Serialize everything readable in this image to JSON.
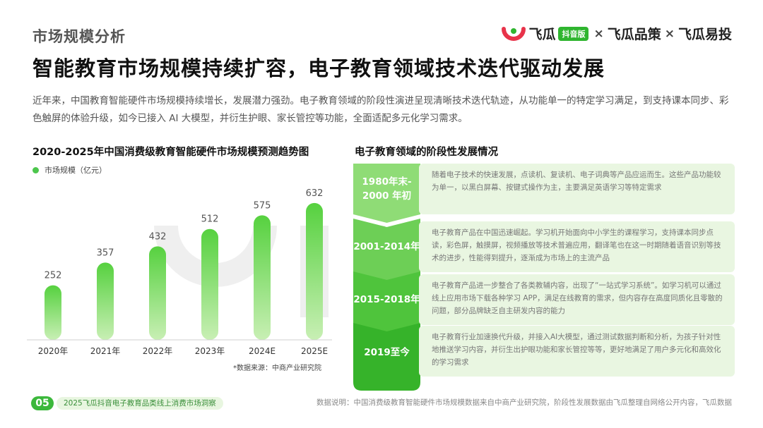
{
  "header": {
    "section_title": "市场规模分析",
    "headline": "智能教育市场规模持续扩容，电子教育领域技术迭代驱动发展",
    "intro": "近年来，中国教育智能硬件市场规模持续增长，发展潜力强劲。电子教育领域的阶段性演进呈现清晰技术迭代轨迹，从功能单一的特定学习满足，到支持课本同步、彩色触屏的体验升级，如今已接入 AI 大模型，并衍生护眼、家长管控等功能，全面适配多元化学习需求。"
  },
  "brand": {
    "name1": "飞瓜",
    "badge": "抖音版",
    "sep1": "×",
    "name2": "飞瓜品策",
    "sep2": "×",
    "name3": "飞瓜易投",
    "logo_color": "#e8334a"
  },
  "chart_data": {
    "type": "bar",
    "title": "2020-2025年中国消费级教育智能硬件市场规模预测趋势图",
    "categories": [
      "2020年",
      "2021年",
      "2022年",
      "2023年",
      "2024E",
      "2025E"
    ],
    "series": [
      {
        "name": "市场规模（亿元）",
        "values": [
          252,
          357,
          432,
          512,
          575,
          632
        ]
      }
    ],
    "ylim": [
      0,
      700
    ],
    "grid": false,
    "legend_position": "top-left",
    "source": "*数据来源：中商产业研究院",
    "colors": {
      "bar_top": "#56d13f",
      "bar_bottom": "#c8efb4"
    }
  },
  "stages": {
    "title": "电子教育领域的阶段性发展情况",
    "items": [
      {
        "label": "1980年末-\n2000 年初",
        "text": "随着电子技术的快速发展，点读机、复读机、电子词典等产品应运而生。这些产品功能较为单一，以黑白屏幕、按键式操作为主，主要满足英语学习等特定需求"
      },
      {
        "label": "2001-2014年",
        "text": "电子教育产品在中国迅速崛起。学习机开始面向中小学生的课程学习，支持课本同步点读，彩色屏，触摸屏，视频播放等技术普遍应用，翻译笔也在这一时期随着语音识别等技术的进步，性能得到提升，逐渐成为市场上的主流产品"
      },
      {
        "label": "2015-2018年",
        "text": "电子教育产品进一步整合了各类教辅内容，出现了“一站式学习系统”。如学习机可以通过线上应用市场下载各种学习 APP，满足在线教育的需求，但内容存在高度同质化且零散的问题，部分品牌缺乏自主研发内容的能力"
      },
      {
        "label": "2019至今",
        "text": "电子教育行业加速换代升级，并接入AI大模型，通过测试数据判断和分析，为孩子针对性地推送学习内容，并衍生出护眼功能和家长管控等等，更好地满足了用户多元化和高效化的学习需求"
      }
    ],
    "arrow_colors": [
      "#8fdc76",
      "#6dcf56",
      "#4fc43c",
      "#36b32a"
    ]
  },
  "footer": {
    "page_number": "05",
    "report_title": "2025飞瓜抖音电子教育品类线上消费市场洞察",
    "note": "数据说明：中国消费级教育智能硬件市场规模数据来自中商产业研究院，阶段性发展数据由飞瓜整理自网络公开内容，飞瓜数据"
  }
}
